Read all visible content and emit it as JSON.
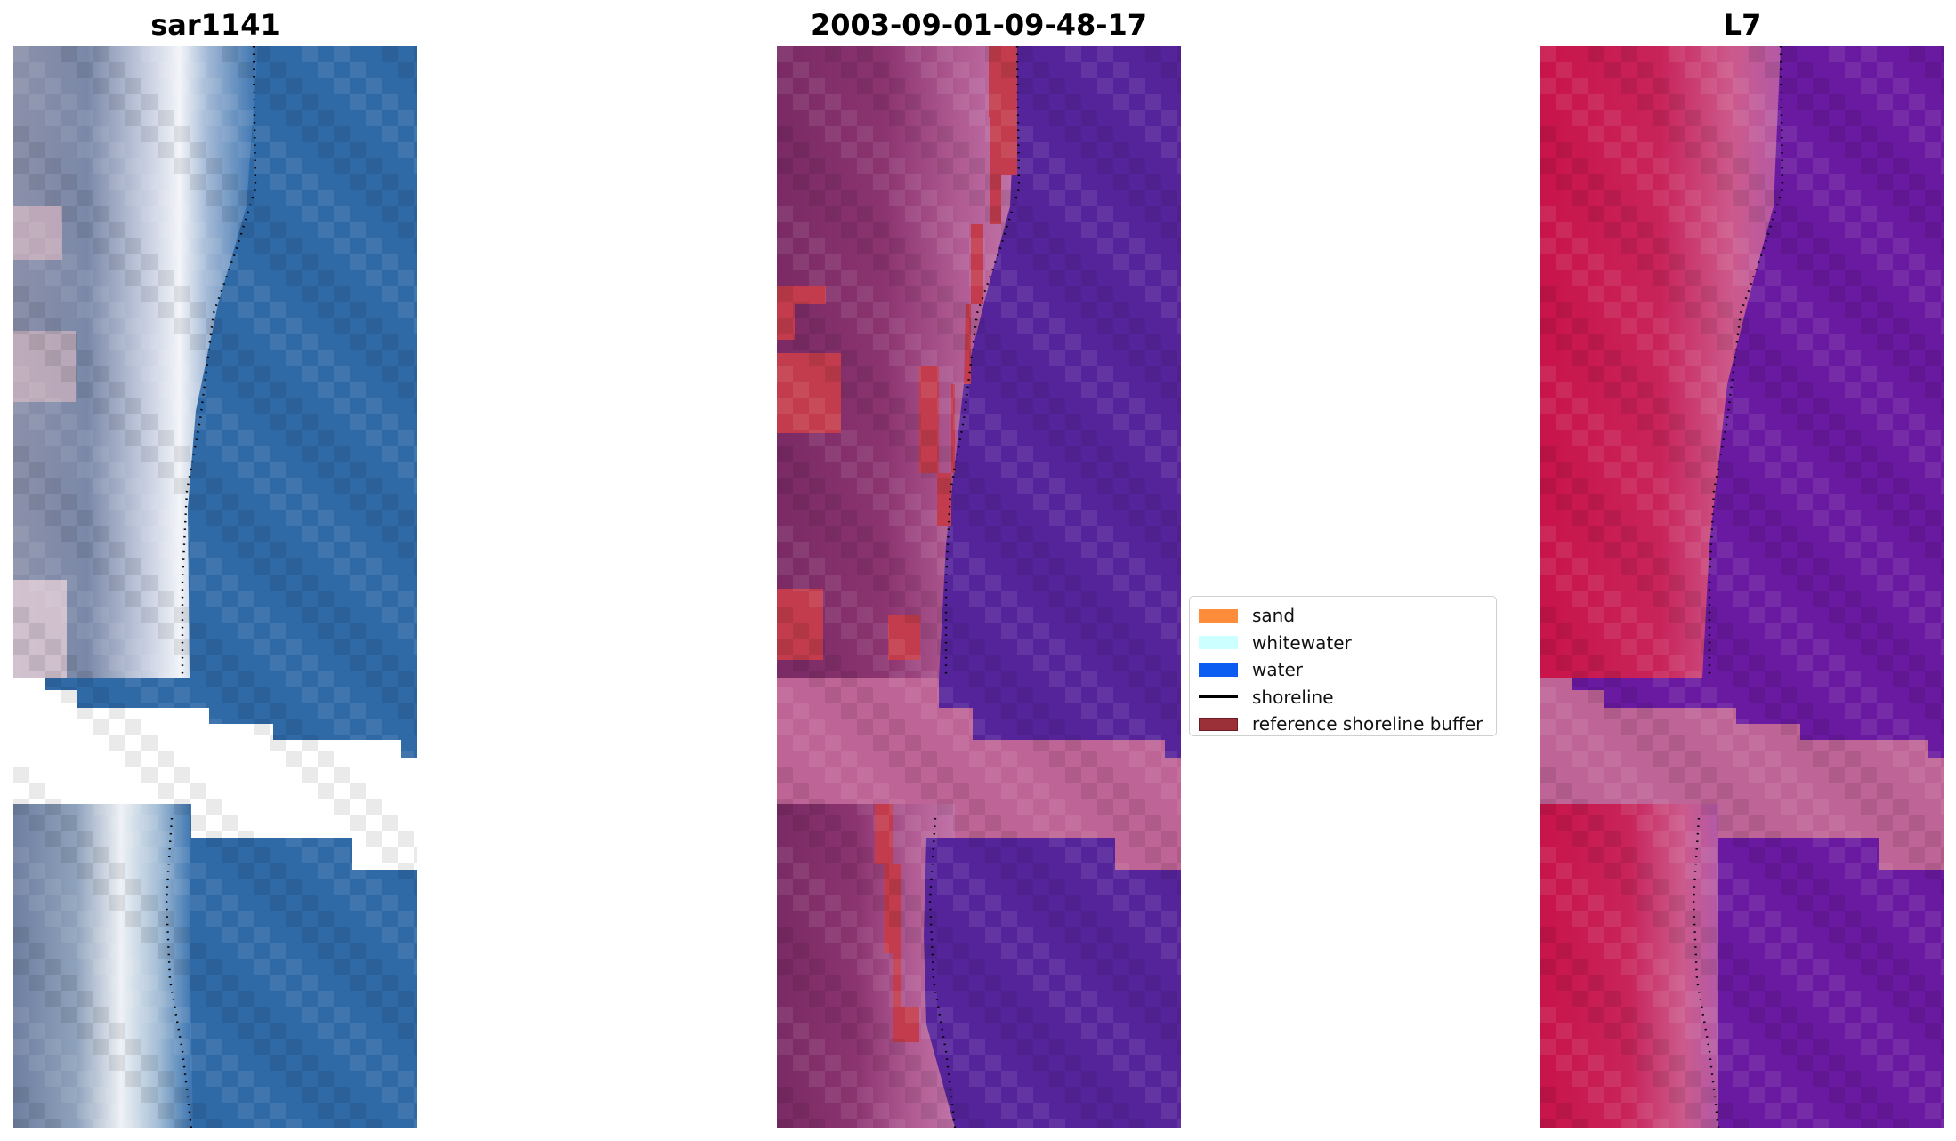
{
  "panels": [
    {
      "title": "sar1141"
    },
    {
      "title": "2003-09-01-09-48-17"
    },
    {
      "title": "L7"
    }
  ],
  "legend": {
    "items": [
      {
        "label": "sand",
        "color": "#ff8c3a",
        "kind": "patch"
      },
      {
        "label": "whitewater",
        "color": "#ccffff",
        "kind": "patch"
      },
      {
        "label": "water",
        "color": "#0b5cf0",
        "kind": "patch"
      },
      {
        "label": "shoreline",
        "color": "#000000",
        "kind": "line"
      },
      {
        "label": "reference shoreline buffer",
        "color": "#9b3038",
        "kind": "patch"
      }
    ]
  },
  "colors": {
    "rgb_water": "#2f6aa6",
    "rgb_sand_light": "#e8e8ee",
    "rgb_land": "#7f89a8",
    "class_land": "#7c2a64",
    "class_water": "#55249b",
    "class_buffer": "#c23c4d",
    "class_nodata": "#bf6496",
    "swir_land": "#c8144a",
    "swir_water": "#6a1aa0",
    "nodata_band": "#bf6496"
  }
}
